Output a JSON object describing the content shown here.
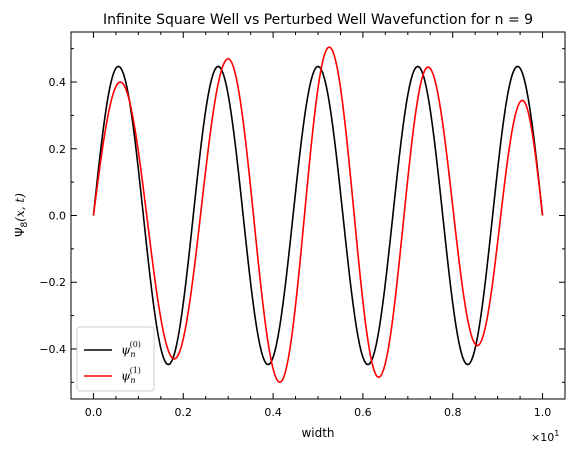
{
  "chart_data": {
    "type": "line",
    "title": "Infinite Square Well vs Perturbed Well Wavefunction for n = 9",
    "xlabel": "width",
    "ylabel": "Ψ8(x, t)",
    "ylabel_main": "Ψ",
    "ylabel_sub": "8",
    "ylabel_args": "(x, t)",
    "x_offset_text": "×10",
    "x_offset_exp": "1",
    "xlim": [
      -0.05,
      1.05
    ],
    "ylim": [
      -0.55,
      0.55
    ],
    "xticks": [
      0.0,
      0.2,
      0.4,
      0.6,
      0.8,
      1.0
    ],
    "xtick_labels": [
      "0.0",
      "0.2",
      "0.4",
      "0.6",
      "0.8",
      "1.0"
    ],
    "yticks": [
      -0.4,
      -0.2,
      0.0,
      0.2,
      0.4
    ],
    "ytick_labels": [
      "−0.4",
      "−0.2",
      "0.0",
      "0.2",
      "0.4"
    ],
    "grid": false,
    "legend_position": "lower-left",
    "series": [
      {
        "name": "ψn(0)",
        "legend_main": "ψ",
        "legend_sub": "n",
        "legend_sup": "(0)",
        "color": "#000000",
        "x": [
          0.0,
          0.0556,
          0.1667,
          0.2778,
          0.3889,
          0.5,
          0.6111,
          0.7222,
          0.8333,
          0.9444,
          1.0
        ],
        "y": [
          0.0,
          0.447,
          -0.447,
          0.447,
          -0.447,
          0.447,
          -0.447,
          0.447,
          -0.447,
          0.447,
          0.0
        ]
      },
      {
        "name": "ψn(1)",
        "legend_main": "ψ",
        "legend_sub": "n",
        "legend_sup": "(1)",
        "color": "#ff0000",
        "x": [
          0.0,
          0.06,
          0.18,
          0.3,
          0.415,
          0.525,
          0.635,
          0.745,
          0.855,
          0.955,
          1.0
        ],
        "y": [
          0.0,
          0.4,
          -0.43,
          0.47,
          -0.5,
          0.505,
          -0.485,
          0.445,
          -0.39,
          0.345,
          0.0
        ]
      }
    ]
  }
}
